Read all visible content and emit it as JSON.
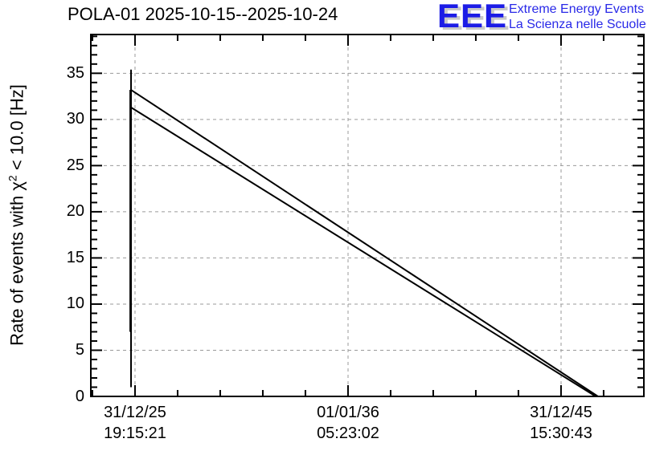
{
  "header": {
    "logo": {
      "eee_text": "EEE",
      "tagline1": "Extreme Energy Events",
      "tagline2": "La Scienza nelle Scuole",
      "eee_color": "#1c1ce6",
      "tagline_color": "#2929e8",
      "shadow_color": "#c9c9c9"
    }
  },
  "chart_data": {
    "type": "line",
    "title": "POLA-01 2025-10-15--2025-10-24",
    "ylabel": "Rate of events with χ2 < 10.0 [Hz]",
    "ylabel_parts": {
      "pre": "Rate of events with ",
      "chi": "χ",
      "sup": "2",
      "post": " < 10.0 [Hz]"
    },
    "xlabel": "",
    "ylim": [
      0,
      39.2
    ],
    "ytick_values": [
      0,
      5,
      10,
      15,
      20,
      25,
      30,
      35
    ],
    "ytick_labels": [
      "0",
      "5",
      "10",
      "15",
      "20",
      "25",
      "30",
      "35"
    ],
    "y_minor_step": 1,
    "xticks": [
      {
        "frac": 0.0799,
        "date": "31/12/25",
        "time": "19:15:21"
      },
      {
        "frac": 0.4651,
        "date": "01/01/36",
        "time": "05:23:02"
      },
      {
        "frac": 0.8503,
        "date": "31/12/45",
        "time": "15:30:43"
      }
    ],
    "x_minor_step_frac": 0.07703,
    "grid": true,
    "grid_on": "dashed gray at every major tick",
    "grid_color": "#9a9a9a",
    "line_color": "#000000",
    "legend": "none",
    "series": [
      {
        "name": "start-spike-a",
        "points": [
          {
            "xf": 0.0727,
            "y": 1.0
          },
          {
            "xf": 0.0727,
            "y": 35.4
          }
        ],
        "width": 2
      },
      {
        "name": "start-spike-b",
        "points": [
          {
            "xf": 0.0713,
            "y": 7.0
          },
          {
            "xf": 0.0713,
            "y": 33.2
          }
        ],
        "width": 2
      },
      {
        "name": "rate-line-upper",
        "points": [
          {
            "xf": 0.0727,
            "y": 33.2
          },
          {
            "xf": 0.917,
            "y": 0.0
          }
        ],
        "width": 2
      },
      {
        "name": "rate-line-lower",
        "points": [
          {
            "xf": 0.0727,
            "y": 31.3
          },
          {
            "xf": 0.913,
            "y": 0.0
          }
        ],
        "width": 2
      }
    ]
  }
}
